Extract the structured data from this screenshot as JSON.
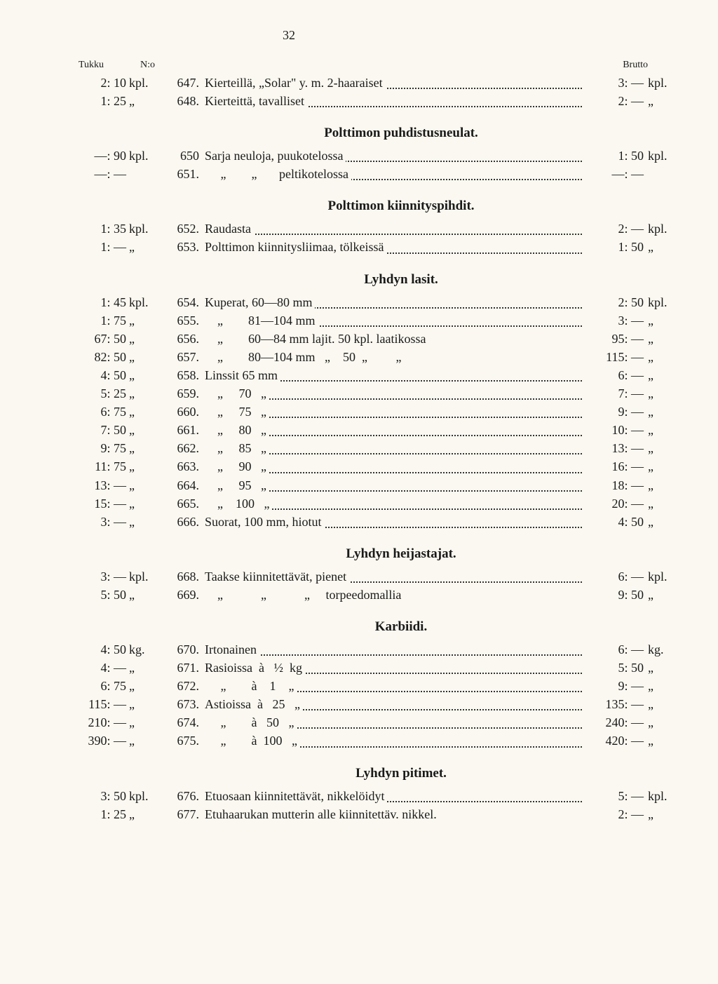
{
  "page_number": "32",
  "headers": {
    "left": "Tukku",
    "mid": "N:o",
    "right": "Brutto"
  },
  "top_rows": [
    {
      "tukku": "2: 10",
      "u1": "kpl.",
      "num": "647.",
      "desc": "Kierteillä, „Solar\" y. m. 2-haaraiset",
      "brutto": "3: —",
      "u2": "kpl."
    },
    {
      "tukku": "1: 25",
      "u1": "„",
      "num": "648.",
      "desc": "Kierteittä, tavalliset",
      "brutto": "2: —",
      "u2": "„"
    }
  ],
  "sections": [
    {
      "title": "Polttimon puhdistusneulat.",
      "rows": [
        {
          "tukku": "—: 90",
          "u1": "kpl.",
          "num": "650",
          "desc": "Sarja neuloja, puukotelossa",
          "brutto": "1: 50",
          "u2": "kpl."
        },
        {
          "tukku": "—: —",
          "u1": "",
          "num": "651.",
          "desc": "     „        „       peltikotelossa",
          "brutto": "—: —",
          "u2": ""
        }
      ]
    },
    {
      "title": "Polttimon kiinnityspihdit.",
      "rows": [
        {
          "tukku": "1: 35",
          "u1": "kpl.",
          "num": "652.",
          "desc": "Raudasta",
          "brutto": "2: —",
          "u2": "kpl."
        },
        {
          "tukku": "1: —",
          "u1": "„",
          "num": "653.",
          "desc": "Polttimon kiinnitysliimaa, tölkeissä",
          "brutto": "1: 50",
          "u2": "„"
        }
      ]
    },
    {
      "title": "Lyhdyn lasit.",
      "rows": [
        {
          "tukku": "1: 45",
          "u1": "kpl.",
          "num": "654.",
          "desc": "Kuperat, 60—80 mm",
          "brutto": "2: 50",
          "u2": "kpl."
        },
        {
          "tukku": "1: 75",
          "u1": "„",
          "num": "655.",
          "desc": "    „        81—104 mm",
          "brutto": "3: —",
          "u2": "„"
        },
        {
          "tukku": "67: 50",
          "u1": "„",
          "num": "656.",
          "desc": "    „        60—84 mm lajit. 50 kpl. laatikossa",
          "brutto": "95: —",
          "u2": "„",
          "nodots": true
        },
        {
          "tukku": "82: 50",
          "u1": "„",
          "num": "657.",
          "desc": "    „        80—104 mm   „    50  „         „",
          "brutto": "115: —",
          "u2": "„",
          "nodots": true
        },
        {
          "tukku": "4: 50",
          "u1": "„",
          "num": "658.",
          "desc": "Linssit 65 mm",
          "brutto": "6: —",
          "u2": "„"
        },
        {
          "tukku": "5: 25",
          "u1": "„",
          "num": "659.",
          "desc": "    „     70   „",
          "brutto": "7: —",
          "u2": "„"
        },
        {
          "tukku": "6: 75",
          "u1": "„",
          "num": "660.",
          "desc": "    „     75   „",
          "brutto": "9: —",
          "u2": "„"
        },
        {
          "tukku": "7: 50",
          "u1": "„",
          "num": "661.",
          "desc": "    „     80   „",
          "brutto": "10: —",
          "u2": "„"
        },
        {
          "tukku": "9: 75",
          "u1": "„",
          "num": "662.",
          "desc": "    „     85   „",
          "brutto": "13: —",
          "u2": "„"
        },
        {
          "tukku": "11: 75",
          "u1": "„",
          "num": "663.",
          "desc": "    „     90   „",
          "brutto": "16: —",
          "u2": "„"
        },
        {
          "tukku": "13: —",
          "u1": "„",
          "num": "664.",
          "desc": "    „     95   „",
          "brutto": "18: —",
          "u2": "„"
        },
        {
          "tukku": "15: —",
          "u1": "„",
          "num": "665.",
          "desc": "    „    100   „",
          "brutto": "20: —",
          "u2": "„"
        },
        {
          "tukku": "3: —",
          "u1": "„",
          "num": "666.",
          "desc": "Suorat, 100 mm, hiotut",
          "brutto": "4: 50",
          "u2": "„"
        }
      ]
    },
    {
      "title": "Lyhdyn heijastajat.",
      "rows": [
        {
          "tukku": "3: —",
          "u1": "kpl.",
          "num": "668.",
          "desc": "Taakse kiinnitettävät, pienet",
          "brutto": "6: —",
          "u2": "kpl."
        },
        {
          "tukku": "5: 50",
          "u1": "„",
          "num": "669.",
          "desc": "    „            „            „     torpeedomallia",
          "brutto": "9: 50",
          "u2": "„",
          "nodots": true
        }
      ]
    },
    {
      "title": "Karbiidi.",
      "rows": [
        {
          "tukku": "4: 50",
          "u1": "kg.",
          "num": "670.",
          "desc": "Irtonainen",
          "brutto": "6: —",
          "u2": "kg."
        },
        {
          "tukku": "4: —",
          "u1": "„",
          "num": "671.",
          "desc": "Rasioissa  à   ½  kg",
          "brutto": "5: 50",
          "u2": "„"
        },
        {
          "tukku": "6: 75",
          "u1": "„",
          "num": "672.",
          "desc": "     „        à    1    „",
          "brutto": "9: —",
          "u2": "„"
        },
        {
          "tukku": "115: —",
          "u1": "„",
          "num": "673.",
          "desc": "Astioissa  à   25   „",
          "brutto": "135: —",
          "u2": "„"
        },
        {
          "tukku": "210: —",
          "u1": "„",
          "num": "674.",
          "desc": "     „        à   50   „",
          "brutto": "240: —",
          "u2": "„"
        },
        {
          "tukku": "390: —",
          "u1": "„",
          "num": "675.",
          "desc": "     „        à  100   „",
          "brutto": "420: —",
          "u2": "„"
        }
      ]
    },
    {
      "title": "Lyhdyn pitimet.",
      "rows": [
        {
          "tukku": "3: 50",
          "u1": "kpl.",
          "num": "676.",
          "desc": "Etuosaan kiinnitettävät, nikkelöidyt",
          "brutto": "5: —",
          "u2": "kpl."
        },
        {
          "tukku": "1: 25",
          "u1": "„",
          "num": "677.",
          "desc": "Etuhaarukan mutterin alle kiinnitettäv. nikkel.",
          "brutto": "2: —",
          "u2": "„",
          "nodots": true
        }
      ]
    }
  ]
}
